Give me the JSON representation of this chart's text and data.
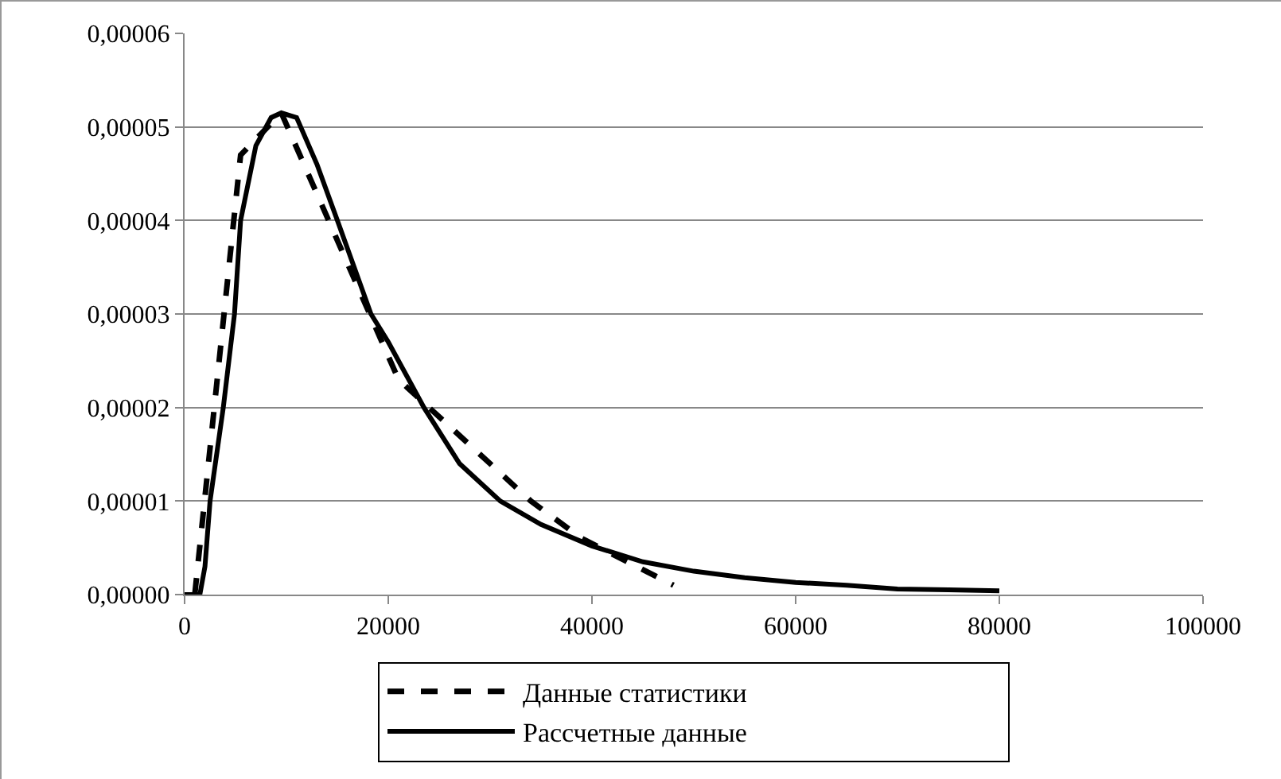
{
  "chart_data": {
    "type": "line",
    "xlim": [
      0,
      100000
    ],
    "xticks": [
      0,
      20000,
      40000,
      60000,
      80000,
      100000
    ],
    "ylim": [
      0,
      6e-05
    ],
    "yticks": [
      {
        "value": 0,
        "label": "0,00000"
      },
      {
        "value": 1e-05,
        "label": "0,00001"
      },
      {
        "value": 2e-05,
        "label": "0,00002"
      },
      {
        "value": 3e-05,
        "label": "0,00003"
      },
      {
        "value": 4e-05,
        "label": "0,00004"
      },
      {
        "value": 5e-05,
        "label": "0,00005"
      },
      {
        "value": 6e-05,
        "label": "0,00006"
      }
    ],
    "grid": "y",
    "legend": "bottom",
    "marker": "none",
    "series": [
      {
        "name": "Данные статистики",
        "color": "#000000",
        "line_style": "dashed",
        "x": [
          1000,
          5500,
          9500,
          21000,
          34000,
          39000,
          48000
        ],
        "values": [
          0,
          4.7e-05,
          5.15e-05,
          2.3e-05,
          1e-05,
          6e-06,
          1e-06
        ]
      },
      {
        "name": "Рассчетные данные",
        "color": "#000000",
        "line_style": "solid",
        "x": [
          0,
          1500,
          2000,
          2500,
          3800,
          4900,
          5500,
          7000,
          8500,
          9500,
          11000,
          13000,
          15000,
          18300,
          20000,
          23500,
          27000,
          31000,
          35000,
          40000,
          45000,
          50000,
          55000,
          60000,
          65000,
          70000,
          75000,
          80000
        ],
        "values": [
          0,
          0,
          3e-06,
          1e-05,
          2e-05,
          3e-05,
          4e-05,
          4.8e-05,
          5.1e-05,
          5.15e-05,
          5.1e-05,
          4.6e-05,
          4e-05,
          3e-05,
          2.7e-05,
          2e-05,
          1.4e-05,
          1e-05,
          7.5e-06,
          5.2e-06,
          3.5e-06,
          2.5e-06,
          1.8e-06,
          1.3e-06,
          1e-06,
          6e-07,
          5e-07,
          4e-07
        ]
      }
    ]
  }
}
